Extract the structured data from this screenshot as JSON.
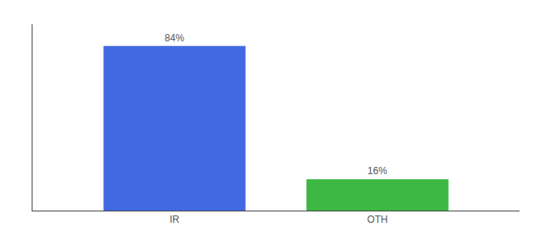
{
  "chart_data": {
    "type": "bar",
    "categories": [
      "IR",
      "OTH"
    ],
    "values": [
      84,
      16
    ],
    "value_labels": [
      "84%",
      "16%"
    ],
    "colors": [
      "#4169e1",
      "#3cb843"
    ],
    "ylim": [
      0,
      95
    ],
    "data_labels": true,
    "tick_labels": "x",
    "grid": false
  }
}
